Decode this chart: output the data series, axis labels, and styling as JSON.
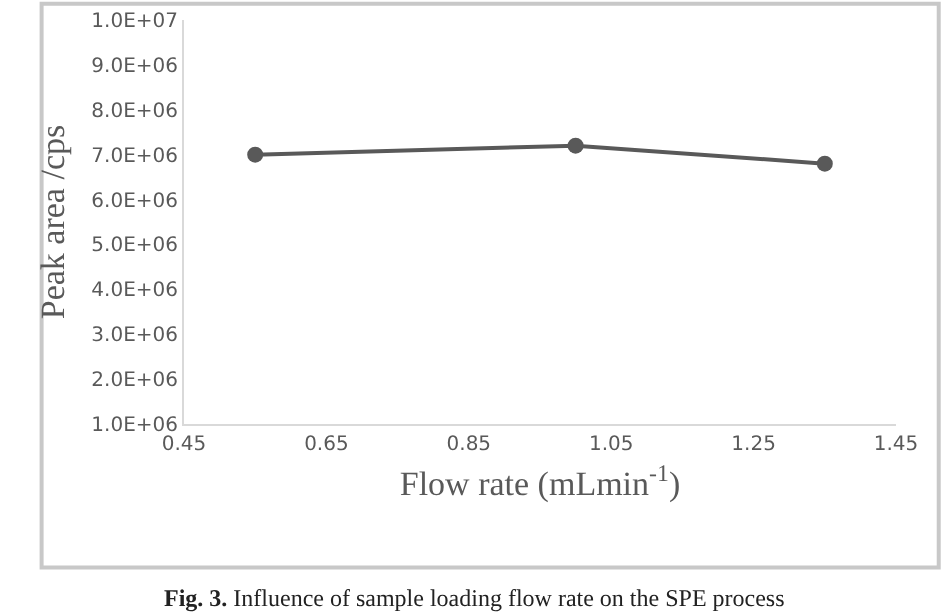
{
  "chart_data": {
    "type": "line",
    "xlabel": "Flow rate (mLmin$^{-1}$)",
    "ylabel": "Peak area /cps",
    "x": [
      0.55,
      1.0,
      1.35
    ],
    "series": [
      {
        "color": "#595959",
        "values": [
          7000000,
          7200000,
          6800000
        ]
      }
    ],
    "marker": "circle",
    "line_style": "solid",
    "grid": false,
    "xlim": [
      0.45,
      1.45
    ],
    "xticks": [
      0.45,
      0.65,
      0.85,
      1.05,
      1.25,
      1.45
    ],
    "ylim": [
      1000000,
      10000000
    ],
    "yticks": [
      {
        "value": 1000000,
        "label": "1.0E+06"
      },
      {
        "value": 2000000,
        "label": "2.0E+06"
      },
      {
        "value": 3000000,
        "label": "3.0E+06"
      },
      {
        "value": 4000000,
        "label": "4.0E+06"
      },
      {
        "value": 5000000,
        "label": "5.0E+06"
      },
      {
        "value": 6000000,
        "label": "6.0E+06"
      },
      {
        "value": 7000000,
        "label": "7.0E+06"
      },
      {
        "value": 8000000,
        "label": "8.0E+06"
      },
      {
        "value": 9000000,
        "label": "9.0E+06"
      },
      {
        "value": 10000000,
        "label": "1.0E+07"
      }
    ],
    "annotations": [
      "Fig. 3. Influence of sample loading flow rate on the SPE process"
    ]
  }
}
